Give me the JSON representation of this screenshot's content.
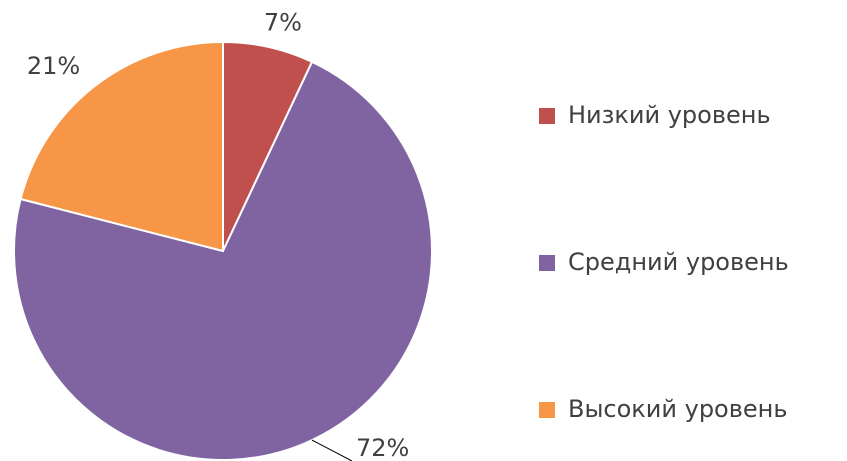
{
  "chart_data": {
    "type": "pie",
    "categories": [
      "Низкий уровень",
      "Средний уровень",
      "Высокий уровень"
    ],
    "values": [
      7,
      72,
      21
    ],
    "value_labels": [
      "7%",
      "72%",
      "21%"
    ],
    "colors": [
      "#c0504d",
      "#8064a2",
      "#f79646"
    ],
    "legend": "right"
  }
}
